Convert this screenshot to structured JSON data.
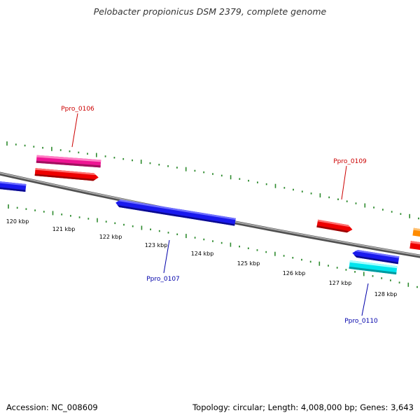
{
  "title": "Pelobacter propionicus DSM 2379, complete genome",
  "footer": {
    "accession": "Accession: NC_008609",
    "summary": "Topology: circular; Length: 4,008,000 bp; Genes: 3,643"
  },
  "scale_labels": [
    "120 kbp",
    "121 kbp",
    "122 kbp",
    "123 kbp",
    "124 kbp",
    "125 kbp",
    "126 kbp",
    "127 kbp",
    "128 kbp"
  ],
  "gene_labels": [
    {
      "text": "Ppro_0106",
      "color": "#cc0000"
    },
    {
      "text": "Ppro_0107",
      "color": "#0000aa"
    },
    {
      "text": "Ppro_0109",
      "color": "#cc0000"
    },
    {
      "text": "Ppro_0110",
      "color": "#0000aa"
    }
  ],
  "colors": {
    "backbone": "#808080",
    "tick": "#2e8b2e",
    "forward_cds": "#ee0000",
    "reverse_cds": "#1a1aee",
    "magenta_feature": "#ee1493",
    "cyan_feature": "#00e5ee",
    "orange_feature": "#ff8c00"
  }
}
